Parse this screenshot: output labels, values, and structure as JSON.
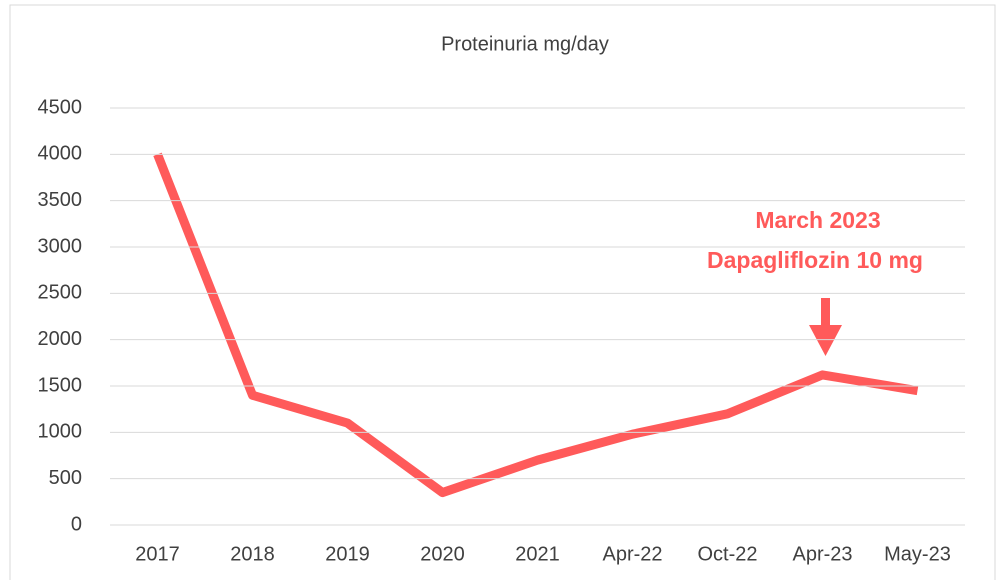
{
  "chart_data": {
    "type": "line",
    "title": "Proteinuria mg/day",
    "categories": [
      "2017",
      "2018",
      "2019",
      "2020",
      "2021",
      "Apr-22",
      "Oct-22",
      "Apr-23",
      "May-23"
    ],
    "series": [
      {
        "name": "Proteinuria mg/day",
        "color": "#ff5a5a",
        "values": [
          4000,
          1400,
          1100,
          350,
          700,
          980,
          1200,
          1620,
          1450
        ]
      }
    ],
    "ylim": [
      0,
      4500
    ],
    "yticks": [
      0,
      500,
      1000,
      1500,
      2000,
      2500,
      3000,
      3500,
      4000,
      4500
    ],
    "grid": true,
    "annotations": [
      "March 2023",
      "Dapagliflozin 10 mg"
    ]
  }
}
